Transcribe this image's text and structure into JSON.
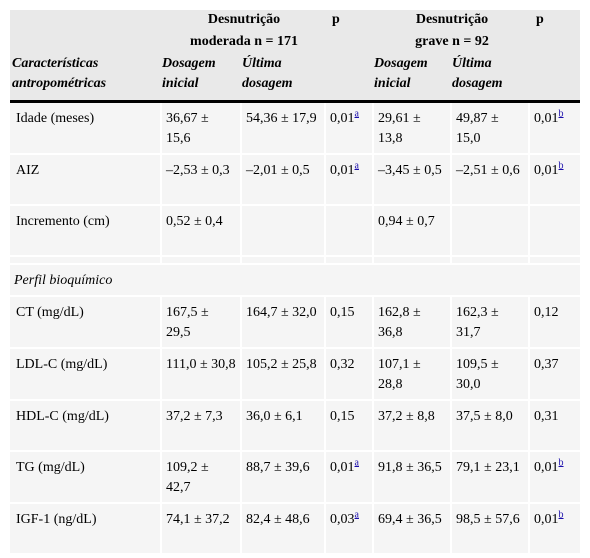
{
  "header": {
    "group1_line1": "Desnutrição",
    "group1_line2": "moderada n = 171",
    "group2_line1": "Desnutrição",
    "group2_line2": "grave n = 92",
    "p_label": "p",
    "row_header_line1": "Características",
    "row_header_line2": "antropométricas",
    "dose_initial_line1": "Dosagem",
    "dose_initial_line2": "inicial",
    "dose_last_line1": "Última",
    "dose_last_line2": "dosagem"
  },
  "section_biochem": "Perfil bioquímico",
  "rows": [
    {
      "label": "Idade (meses)",
      "m_init": "36,67 ± 15,6",
      "m_last": "54,36 ± 17,9",
      "p1": "0,01",
      "p1_sup": "a",
      "g_init": "29,61 ± 13,8",
      "g_last": "49,87 ± 15,0",
      "p2": "0,01",
      "p2_sup": "b"
    },
    {
      "label": "AIZ",
      "m_init": "–2,53 ± 0,3",
      "m_last": "–2,01 ± 0,5",
      "p1": "0,01",
      "p1_sup": "a",
      "g_init": "–3,45 ± 0,5",
      "g_last": "–2,51 ± 0,6",
      "p2": "0,01",
      "p2_sup": "b"
    },
    {
      "label": "Incremento (cm)",
      "m_init": "0,52 ± 0,4",
      "m_last": "",
      "p1": "",
      "p1_sup": "",
      "g_init": "0,94 ± 0,7",
      "g_last": "",
      "p2": "",
      "p2_sup": ""
    }
  ],
  "bio_rows": [
    {
      "label": "CT (mg/dL)",
      "m_init": "167,5 ± 29,5",
      "m_last": "164,7 ± 32,0",
      "p1": "0,15",
      "p1_sup": "",
      "g_init": "162,8 ± 36,8",
      "g_last": "162,3 ± 31,7",
      "p2": "0,12",
      "p2_sup": ""
    },
    {
      "label": "LDL-C (mg/dL)",
      "m_init": "111,0 ± 30,8",
      "m_last": "105,2 ± 25,8",
      "p1": "0,32",
      "p1_sup": "",
      "g_init": "107,1 ± 28,8",
      "g_last": "109,5 ± 30,0",
      "p2": "0,37",
      "p2_sup": ""
    },
    {
      "label": "HDL-C (mg/dL)",
      "m_init": "37,2 ± 7,3",
      "m_last": "36,0 ± 6,1",
      "p1": "0,15",
      "p1_sup": "",
      "g_init": "37,2 ± 8,8",
      "g_last": "37,5 ± 8,0",
      "p2": "0,31",
      "p2_sup": ""
    },
    {
      "label": "TG (mg/dL)",
      "m_init": "109,2 ± 42,7",
      "m_last": "88,7 ± 39,6",
      "p1": "0,01",
      "p1_sup": "a",
      "g_init": "91,8 ± 36,5",
      "g_last": "79,1 ± 23,1",
      "p2": "0,01",
      "p2_sup": "b"
    },
    {
      "label": "IGF-1 (ng/dL)",
      "m_init": "74,1 ± 37,2",
      "m_last": "82,4 ± 48,6",
      "p1": "0,03",
      "p1_sup": "a",
      "g_init": "69,4 ± 36,5",
      "g_last": "98,5 ± 57,6",
      "p2": "0,01",
      "p2_sup": "b"
    }
  ]
}
